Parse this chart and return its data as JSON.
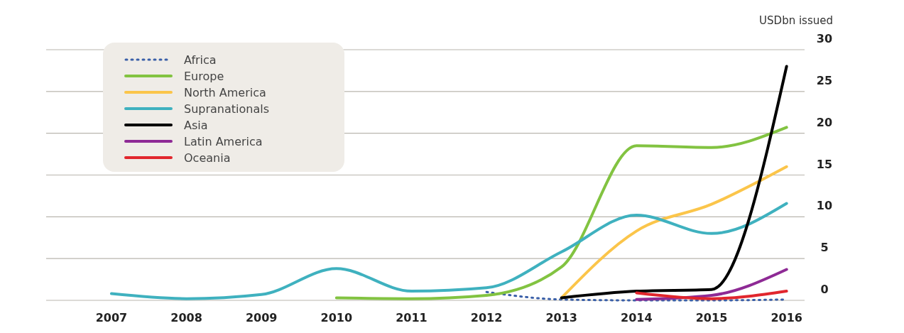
{
  "chart_data": {
    "type": "line",
    "ylabel": "USDbn issued",
    "xlim": [
      2006.13,
      2016.24
    ],
    "xticks": [
      2007,
      2008,
      2009,
      2010,
      2011,
      2012,
      2013,
      2014,
      2015,
      2016
    ],
    "ylim": [
      0,
      30
    ],
    "yticks": [
      0,
      5,
      10,
      15,
      20,
      25,
      30
    ],
    "grid": "y",
    "legend": "top left",
    "series": [
      {
        "name": "Africa",
        "color": "#3a5fa8",
        "line_style": "dotted",
        "x": [
          2012,
          2013,
          2014,
          2015,
          2016
        ],
        "values": [
          1.0,
          0.1,
          0,
          0,
          0.1
        ]
      },
      {
        "name": "Europe",
        "color": "#82c341",
        "x": [
          2010,
          2011,
          2012,
          2013,
          2014,
          2015,
          2016
        ],
        "values": [
          0.3,
          0.2,
          0.6,
          4.0,
          18.5,
          18.3,
          20.7
        ]
      },
      {
        "name": "North America",
        "color": "#fbc54a",
        "x": [
          2013,
          2014,
          2015,
          2016
        ],
        "values": [
          0.3,
          8.3,
          11.5,
          16.0
        ]
      },
      {
        "name": "Supranationals",
        "color": "#3fb1bf",
        "x": [
          2007,
          2008,
          2009,
          2010,
          2011,
          2012,
          2013,
          2014,
          2015,
          2016
        ],
        "values": [
          0.8,
          0.2,
          0.7,
          3.8,
          1.1,
          1.5,
          5.8,
          10.2,
          8.0,
          11.6
        ]
      },
      {
        "name": "Asia",
        "color": "#000000",
        "x": [
          2013,
          2014,
          2015,
          2016
        ],
        "values": [
          0.3,
          1.1,
          1.3,
          28.0
        ]
      },
      {
        "name": "Latin America",
        "color": "#8e2a95",
        "x": [
          2014,
          2015,
          2016
        ],
        "values": [
          0.1,
          0.6,
          3.7
        ]
      },
      {
        "name": "Oceania",
        "color": "#e1262d",
        "x": [
          2014,
          2015,
          2016
        ],
        "values": [
          0.9,
          0.2,
          1.1
        ]
      }
    ]
  }
}
